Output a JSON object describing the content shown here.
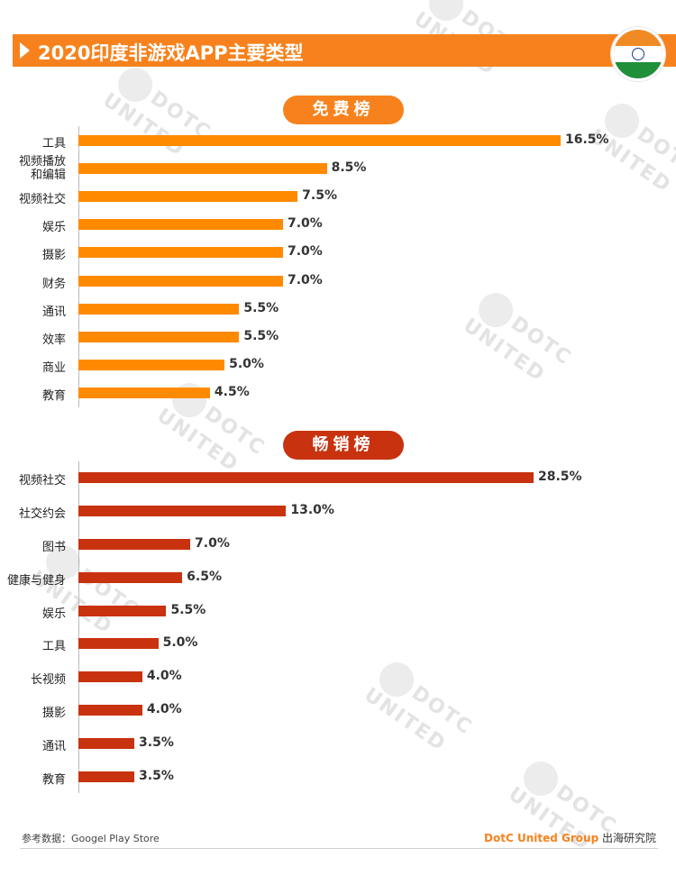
{
  "title": "2020印度非游戏APP主要类型",
  "colors": {
    "accent": "#f7821d",
    "paid_bar": "#c8320f",
    "free_bar": "#ff8a00"
  },
  "watermark": "DOTC UNITED",
  "chart_data": [
    {
      "type": "bar",
      "orientation": "horizontal",
      "title": "免费榜",
      "categories": [
        "工具",
        "视频播放\n和编辑",
        "视频社交",
        "娱乐",
        "摄影",
        "财务",
        "通讯",
        "效率",
        "商业",
        "教育"
      ],
      "values": [
        16.5,
        8.5,
        7.5,
        7.0,
        7.0,
        7.0,
        5.5,
        5.5,
        5.0,
        4.5
      ],
      "value_labels": [
        "16.5%",
        "8.5%",
        "7.5%",
        "7.0%",
        "7.0%",
        "7.0%",
        "5.5%",
        "5.5%",
        "5.0%",
        "4.5%"
      ],
      "xlim": [
        0,
        16.5
      ]
    },
    {
      "type": "bar",
      "orientation": "horizontal",
      "title": "畅销榜",
      "categories": [
        "视频社交",
        "社交约会",
        "图书",
        "健康与健身",
        "娱乐",
        "工具",
        "长视频",
        "摄影",
        "通讯",
        "教育"
      ],
      "values": [
        28.5,
        13.0,
        7.0,
        6.5,
        5.5,
        5.0,
        4.0,
        4.0,
        3.5,
        3.5
      ],
      "value_labels": [
        "28.5%",
        "13.0%",
        "7.0%",
        "6.5%",
        "5.5%",
        "5.0%",
        "4.0%",
        "4.0%",
        "3.5%",
        "3.5%"
      ],
      "xlim": [
        0,
        28.5
      ]
    }
  ],
  "footer": {
    "source": "参考数据：Googel Play Store",
    "brand_name": "DotC United Group",
    "brand_suffix": " 出海研究院"
  }
}
